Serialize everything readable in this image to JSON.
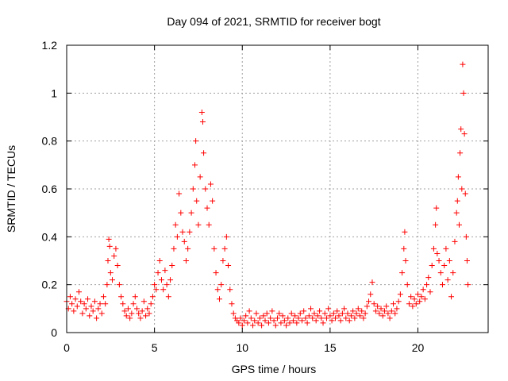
{
  "chart_data": {
    "type": "scatter",
    "title": "Day 094 of 2021, SRMTID for receiver bogt",
    "xlabel": "GPS time / hours",
    "ylabel": "SRMTID / TECUs",
    "xlim": [
      0,
      24
    ],
    "ylim": [
      0,
      1.2
    ],
    "xticks": [
      0,
      5,
      10,
      15,
      20
    ],
    "xtick_labels": [
      "0",
      "5",
      "10",
      "15",
      "20"
    ],
    "yticks": [
      0,
      0.2,
      0.4,
      0.6,
      0.8,
      1.0,
      1.2
    ],
    "ytick_labels": [
      "0",
      "0.2",
      "0.4",
      "0.6",
      "0.8",
      "1",
      "1.2"
    ],
    "grid": true,
    "marker": "+",
    "color": "#ff0000",
    "series": [
      {
        "name": "SRMTID",
        "points": [
          [
            0.0,
            0.13
          ],
          [
            0.1,
            0.1
          ],
          [
            0.2,
            0.15
          ],
          [
            0.3,
            0.12
          ],
          [
            0.4,
            0.09
          ],
          [
            0.5,
            0.14
          ],
          [
            0.6,
            0.11
          ],
          [
            0.7,
            0.17
          ],
          [
            0.8,
            0.13
          ],
          [
            0.9,
            0.08
          ],
          [
            1.0,
            0.12
          ],
          [
            1.1,
            0.1
          ],
          [
            1.2,
            0.14
          ],
          [
            1.3,
            0.07
          ],
          [
            1.4,
            0.11
          ],
          [
            1.5,
            0.09
          ],
          [
            1.6,
            0.13
          ],
          [
            1.7,
            0.06
          ],
          [
            1.8,
            0.1
          ],
          [
            1.9,
            0.12
          ],
          [
            2.0,
            0.08
          ],
          [
            2.1,
            0.15
          ],
          [
            2.2,
            0.12
          ],
          [
            2.3,
            0.2
          ],
          [
            2.35,
            0.3
          ],
          [
            2.4,
            0.39
          ],
          [
            2.45,
            0.36
          ],
          [
            2.5,
            0.25
          ],
          [
            2.6,
            0.22
          ],
          [
            2.7,
            0.32
          ],
          [
            2.8,
            0.35
          ],
          [
            2.9,
            0.28
          ],
          [
            3.0,
            0.2
          ],
          [
            3.1,
            0.15
          ],
          [
            3.2,
            0.12
          ],
          [
            3.3,
            0.09
          ],
          [
            3.4,
            0.07
          ],
          [
            3.5,
            0.1
          ],
          [
            3.6,
            0.06
          ],
          [
            3.7,
            0.08
          ],
          [
            3.8,
            0.12
          ],
          [
            3.9,
            0.15
          ],
          [
            4.0,
            0.1
          ],
          [
            4.1,
            0.08
          ],
          [
            4.2,
            0.06
          ],
          [
            4.3,
            0.09
          ],
          [
            4.4,
            0.13
          ],
          [
            4.5,
            0.07
          ],
          [
            4.6,
            0.1
          ],
          [
            4.7,
            0.08
          ],
          [
            4.8,
            0.12
          ],
          [
            4.9,
            0.15
          ],
          [
            5.0,
            0.2
          ],
          [
            5.1,
            0.18
          ],
          [
            5.2,
            0.25
          ],
          [
            5.3,
            0.3
          ],
          [
            5.4,
            0.22
          ],
          [
            5.5,
            0.18
          ],
          [
            5.6,
            0.26
          ],
          [
            5.7,
            0.2
          ],
          [
            5.8,
            0.15
          ],
          [
            5.9,
            0.22
          ],
          [
            6.0,
            0.28
          ],
          [
            6.1,
            0.35
          ],
          [
            6.2,
            0.45
          ],
          [
            6.3,
            0.4
          ],
          [
            6.4,
            0.58
          ],
          [
            6.5,
            0.5
          ],
          [
            6.6,
            0.42
          ],
          [
            6.7,
            0.38
          ],
          [
            6.8,
            0.3
          ],
          [
            6.9,
            0.35
          ],
          [
            7.0,
            0.42
          ],
          [
            7.1,
            0.5
          ],
          [
            7.2,
            0.6
          ],
          [
            7.3,
            0.7
          ],
          [
            7.35,
            0.8
          ],
          [
            7.4,
            0.55
          ],
          [
            7.5,
            0.45
          ],
          [
            7.6,
            0.65
          ],
          [
            7.7,
            0.92
          ],
          [
            7.75,
            0.88
          ],
          [
            7.8,
            0.75
          ],
          [
            7.9,
            0.6
          ],
          [
            8.0,
            0.52
          ],
          [
            8.1,
            0.45
          ],
          [
            8.2,
            0.62
          ],
          [
            8.3,
            0.55
          ],
          [
            8.4,
            0.35
          ],
          [
            8.5,
            0.25
          ],
          [
            8.6,
            0.18
          ],
          [
            8.7,
            0.14
          ],
          [
            8.8,
            0.2
          ],
          [
            8.9,
            0.3
          ],
          [
            9.0,
            0.35
          ],
          [
            9.1,
            0.4
          ],
          [
            9.2,
            0.28
          ],
          [
            9.3,
            0.18
          ],
          [
            9.4,
            0.12
          ],
          [
            9.5,
            0.08
          ],
          [
            9.6,
            0.06
          ],
          [
            9.7,
            0.05
          ],
          [
            9.8,
            0.04
          ],
          [
            9.9,
            0.06
          ],
          [
            10.0,
            0.03
          ],
          [
            10.1,
            0.05
          ],
          [
            10.2,
            0.07
          ],
          [
            10.3,
            0.04
          ],
          [
            10.4,
            0.09
          ],
          [
            10.5,
            0.06
          ],
          [
            10.6,
            0.03
          ],
          [
            10.7,
            0.05
          ],
          [
            10.8,
            0.08
          ],
          [
            10.9,
            0.04
          ],
          [
            11.0,
            0.06
          ],
          [
            11.1,
            0.03
          ],
          [
            11.2,
            0.07
          ],
          [
            11.3,
            0.05
          ],
          [
            11.4,
            0.08
          ],
          [
            11.5,
            0.04
          ],
          [
            11.6,
            0.06
          ],
          [
            11.7,
            0.09
          ],
          [
            11.8,
            0.05
          ],
          [
            11.9,
            0.03
          ],
          [
            12.0,
            0.06
          ],
          [
            12.1,
            0.08
          ],
          [
            12.2,
            0.04
          ],
          [
            12.3,
            0.07
          ],
          [
            12.4,
            0.05
          ],
          [
            12.5,
            0.03
          ],
          [
            12.6,
            0.06
          ],
          [
            12.7,
            0.04
          ],
          [
            12.8,
            0.08
          ],
          [
            12.9,
            0.05
          ],
          [
            13.0,
            0.07
          ],
          [
            13.1,
            0.04
          ],
          [
            13.2,
            0.06
          ],
          [
            13.3,
            0.08
          ],
          [
            13.4,
            0.05
          ],
          [
            13.5,
            0.09
          ],
          [
            13.6,
            0.06
          ],
          [
            13.7,
            0.04
          ],
          [
            13.8,
            0.07
          ],
          [
            13.9,
            0.1
          ],
          [
            14.0,
            0.06
          ],
          [
            14.1,
            0.08
          ],
          [
            14.2,
            0.05
          ],
          [
            14.3,
            0.07
          ],
          [
            14.4,
            0.09
          ],
          [
            14.5,
            0.06
          ],
          [
            14.6,
            0.04
          ],
          [
            14.7,
            0.08
          ],
          [
            14.8,
            0.06
          ],
          [
            14.9,
            0.1
          ],
          [
            15.0,
            0.07
          ],
          [
            15.1,
            0.05
          ],
          [
            15.2,
            0.08
          ],
          [
            15.3,
            0.06
          ],
          [
            15.4,
            0.09
          ],
          [
            15.5,
            0.07
          ],
          [
            15.6,
            0.05
          ],
          [
            15.7,
            0.08
          ],
          [
            15.8,
            0.1
          ],
          [
            15.9,
            0.06
          ],
          [
            16.0,
            0.08
          ],
          [
            16.1,
            0.05
          ],
          [
            16.2,
            0.07
          ],
          [
            16.3,
            0.09
          ],
          [
            16.4,
            0.06
          ],
          [
            16.5,
            0.08
          ],
          [
            16.6,
            0.1
          ],
          [
            16.7,
            0.07
          ],
          [
            16.8,
            0.09
          ],
          [
            16.9,
            0.06
          ],
          [
            17.0,
            0.08
          ],
          [
            17.1,
            0.11
          ],
          [
            17.2,
            0.13
          ],
          [
            17.3,
            0.16
          ],
          [
            17.4,
            0.21
          ],
          [
            17.5,
            0.12
          ],
          [
            17.6,
            0.09
          ],
          [
            17.7,
            0.11
          ],
          [
            17.8,
            0.08
          ],
          [
            17.9,
            0.1
          ],
          [
            18.0,
            0.07
          ],
          [
            18.1,
            0.09
          ],
          [
            18.2,
            0.11
          ],
          [
            18.3,
            0.08
          ],
          [
            18.4,
            0.06
          ],
          [
            18.5,
            0.09
          ],
          [
            18.6,
            0.12
          ],
          [
            18.7,
            0.08
          ],
          [
            18.8,
            0.1
          ],
          [
            18.9,
            0.13
          ],
          [
            19.0,
            0.16
          ],
          [
            19.1,
            0.25
          ],
          [
            19.2,
            0.35
          ],
          [
            19.25,
            0.42
          ],
          [
            19.3,
            0.3
          ],
          [
            19.4,
            0.2
          ],
          [
            19.5,
            0.12
          ],
          [
            19.6,
            0.15
          ],
          [
            19.7,
            0.11
          ],
          [
            19.8,
            0.14
          ],
          [
            19.9,
            0.12
          ],
          [
            20.0,
            0.16
          ],
          [
            20.1,
            0.13
          ],
          [
            20.2,
            0.15
          ],
          [
            20.3,
            0.18
          ],
          [
            20.4,
            0.14
          ],
          [
            20.5,
            0.2
          ],
          [
            20.6,
            0.23
          ],
          [
            20.7,
            0.17
          ],
          [
            20.8,
            0.28
          ],
          [
            20.9,
            0.35
          ],
          [
            21.0,
            0.45
          ],
          [
            21.05,
            0.52
          ],
          [
            21.1,
            0.33
          ],
          [
            21.2,
            0.3
          ],
          [
            21.3,
            0.25
          ],
          [
            21.4,
            0.2
          ],
          [
            21.5,
            0.28
          ],
          [
            21.6,
            0.35
          ],
          [
            21.7,
            0.22
          ],
          [
            21.8,
            0.3
          ],
          [
            21.9,
            0.15
          ],
          [
            22.0,
            0.25
          ],
          [
            22.1,
            0.38
          ],
          [
            22.2,
            0.5
          ],
          [
            22.25,
            0.55
          ],
          [
            22.3,
            0.65
          ],
          [
            22.35,
            0.45
          ],
          [
            22.4,
            0.75
          ],
          [
            22.45,
            0.85
          ],
          [
            22.5,
            0.6
          ],
          [
            22.55,
            1.12
          ],
          [
            22.6,
            1.0
          ],
          [
            22.65,
            0.83
          ],
          [
            22.7,
            0.58
          ],
          [
            22.75,
            0.4
          ],
          [
            22.8,
            0.3
          ],
          [
            22.85,
            0.2
          ]
        ]
      }
    ]
  }
}
